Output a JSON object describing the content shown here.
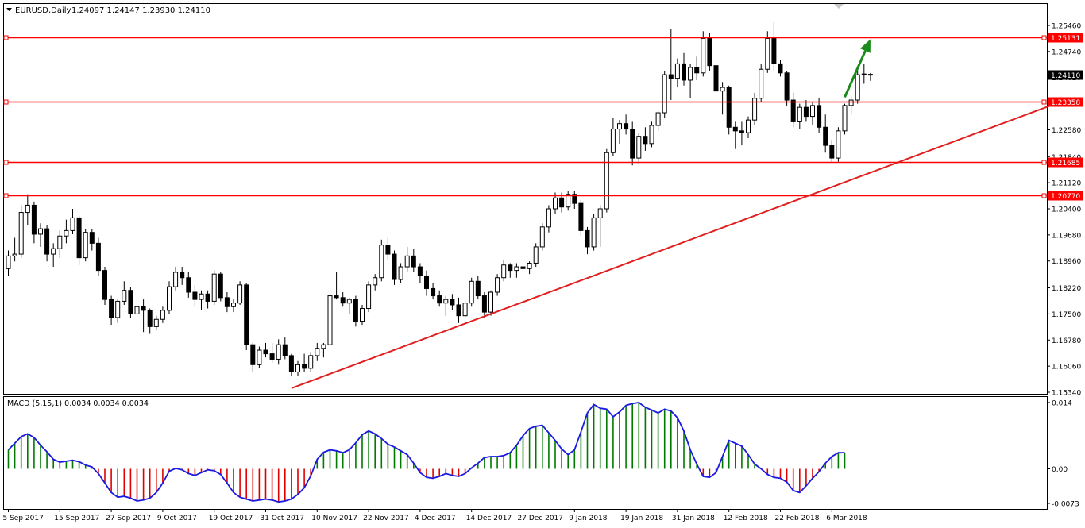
{
  "header": {
    "symbol_line": "EURUSD,Daily",
    "ohlc": "1.24097 1.24147 1.23930 1.24110"
  },
  "macd": {
    "label": "MACD (5,15,1) 0.0034 0.0034 0.0034",
    "ticks": [
      {
        "value": 0.014,
        "label": "0.014"
      },
      {
        "value": 0.0,
        "label": "0.00"
      },
      {
        "value": -0.0073,
        "label": "-0.0073"
      }
    ]
  },
  "colors": {
    "bull_body": "#ffffff",
    "bear_body": "#000000",
    "level_line": "#ff0000",
    "trendline": "#e02020",
    "arrow": "#1a8a1a",
    "hist_pos": "#007a00",
    "hist_neg": "#e00000",
    "macd_line": "#1a1ae0",
    "price_tag_bg": "#ff0000",
    "current_tag_bg": "#000000"
  },
  "chart_data": {
    "type": "candlestick",
    "symbol": "EURUSD",
    "timeframe": "Daily",
    "y_ticks": [
      1.2546,
      1.2474,
      1.2402,
      1.233,
      1.2258,
      1.2184,
      1.2112,
      1.204,
      1.1968,
      1.1896,
      1.1822,
      1.175,
      1.1678,
      1.1606,
      1.1534
    ],
    "y_tick_labels": [
      "1.25460",
      "1.24740",
      "1.24020",
      "1.23300",
      "1.22580",
      "1.21840",
      "1.21120",
      "1.20400",
      "1.19680",
      "1.18960",
      "1.18220",
      "1.17500",
      "1.16780",
      "1.16060",
      "1.15340"
    ],
    "x_labels": [
      "5 Sep 2017",
      "15 Sep 2017",
      "27 Sep 2017",
      "9 Oct 2017",
      "19 Oct 2017",
      "31 Oct 2017",
      "10 Nov 2017",
      "22 Nov 2017",
      "4 Dec 2017",
      "14 Dec 2017",
      "27 Dec 2017",
      "9 Jan 2018",
      "19 Jan 2018",
      "31 Jan 2018",
      "12 Feb 2018",
      "22 Feb 2018",
      "6 Mar 2018"
    ],
    "x_label_bars": [
      0,
      8,
      16,
      24,
      32,
      40,
      48,
      56,
      64,
      72,
      80,
      88,
      96,
      104,
      112,
      120,
      128
    ],
    "horizontal_levels": [
      {
        "value": 1.25131,
        "label": "1.25131"
      },
      {
        "value": 1.23358,
        "label": "1.23358"
      },
      {
        "value": 1.21685,
        "label": "1.21685"
      },
      {
        "value": 1.2077,
        "label": "1.20770"
      }
    ],
    "current_price": {
      "value": 1.2411,
      "label": "1.24110"
    },
    "trendline": {
      "from": {
        "bar": 44,
        "price": 1.1545
      },
      "to": {
        "bar": 162,
        "price": 1.2325
      }
    },
    "arrow": {
      "from": {
        "bar": 130,
        "price": 1.2348
      },
      "to": {
        "bar": 134,
        "price": 1.2508
      }
    },
    "candles": [
      [
        1.1875,
        1.1925,
        1.1855,
        1.191
      ],
      [
        1.191,
        1.196,
        1.1895,
        1.1915
      ],
      [
        1.1915,
        1.205,
        1.1905,
        1.203
      ],
      [
        1.203,
        1.208,
        1.1995,
        1.205
      ],
      [
        1.205,
        1.206,
        1.1945,
        1.197
      ],
      [
        1.197,
        1.2,
        1.1935,
        1.1985
      ],
      [
        1.1985,
        1.1995,
        1.1895,
        1.1915
      ],
      [
        1.1915,
        1.1945,
        1.188,
        1.193
      ],
      [
        1.193,
        1.198,
        1.1905,
        1.1965
      ],
      [
        1.1965,
        1.201,
        1.1945,
        1.198
      ],
      [
        1.198,
        1.204,
        1.197,
        1.2015
      ],
      [
        1.2015,
        1.202,
        1.1885,
        1.1905
      ],
      [
        1.1905,
        1.1985,
        1.1895,
        1.1975
      ],
      [
        1.1975,
        1.1985,
        1.1925,
        1.1945
      ],
      [
        1.1945,
        1.196,
        1.1855,
        1.187
      ],
      [
        1.187,
        1.188,
        1.1775,
        1.179
      ],
      [
        1.179,
        1.18,
        1.172,
        1.174
      ],
      [
        1.174,
        1.179,
        1.1725,
        1.1785
      ],
      [
        1.1785,
        1.184,
        1.1775,
        1.1815
      ],
      [
        1.1815,
        1.1825,
        1.174,
        1.175
      ],
      [
        1.175,
        1.178,
        1.1705,
        1.177
      ],
      [
        1.177,
        1.179,
        1.17,
        1.176
      ],
      [
        1.176,
        1.1765,
        1.1695,
        1.1715
      ],
      [
        1.1715,
        1.1745,
        1.1705,
        1.1735
      ],
      [
        1.1735,
        1.177,
        1.1725,
        1.176
      ],
      [
        1.176,
        1.184,
        1.175,
        1.1825
      ],
      [
        1.1825,
        1.188,
        1.1815,
        1.1865
      ],
      [
        1.1865,
        1.188,
        1.183,
        1.185
      ],
      [
        1.185,
        1.1865,
        1.1795,
        1.181
      ],
      [
        1.181,
        1.183,
        1.177,
        1.179
      ],
      [
        1.179,
        1.1815,
        1.176,
        1.1805
      ],
      [
        1.1805,
        1.1815,
        1.1765,
        1.1785
      ],
      [
        1.1785,
        1.187,
        1.1775,
        1.186
      ],
      [
        1.186,
        1.1865,
        1.1785,
        1.1795
      ],
      [
        1.1795,
        1.181,
        1.1755,
        1.177
      ],
      [
        1.177,
        1.179,
        1.1755,
        1.178
      ],
      [
        1.178,
        1.184,
        1.1775,
        1.183
      ],
      [
        1.183,
        1.1835,
        1.165,
        1.1665
      ],
      [
        1.1665,
        1.167,
        1.159,
        1.161
      ],
      [
        1.161,
        1.166,
        1.16,
        1.165
      ],
      [
        1.165,
        1.167,
        1.163,
        1.164
      ],
      [
        1.164,
        1.167,
        1.1615,
        1.1625
      ],
      [
        1.1625,
        1.168,
        1.161,
        1.1665
      ],
      [
        1.1665,
        1.1685,
        1.1625,
        1.1635
      ],
      [
        1.1635,
        1.164,
        1.158,
        1.159
      ],
      [
        1.159,
        1.162,
        1.158,
        1.161
      ],
      [
        1.161,
        1.164,
        1.159,
        1.16
      ],
      [
        1.16,
        1.1645,
        1.159,
        1.1635
      ],
      [
        1.1635,
        1.167,
        1.162,
        1.1655
      ],
      [
        1.1655,
        1.167,
        1.163,
        1.1665
      ],
      [
        1.1665,
        1.181,
        1.166,
        1.18
      ],
      [
        1.18,
        1.1865,
        1.179,
        1.1795
      ],
      [
        1.1795,
        1.181,
        1.177,
        1.178
      ],
      [
        1.178,
        1.1795,
        1.175,
        1.179
      ],
      [
        1.179,
        1.18,
        1.1715,
        1.173
      ],
      [
        1.173,
        1.1775,
        1.172,
        1.1765
      ],
      [
        1.1765,
        1.184,
        1.1755,
        1.183
      ],
      [
        1.183,
        1.186,
        1.1815,
        1.185
      ],
      [
        1.185,
        1.1955,
        1.184,
        1.194
      ],
      [
        1.194,
        1.196,
        1.19,
        1.1915
      ],
      [
        1.1915,
        1.1925,
        1.183,
        1.1845
      ],
      [
        1.1845,
        1.189,
        1.1835,
        1.188
      ],
      [
        1.188,
        1.1935,
        1.1865,
        1.191
      ],
      [
        1.191,
        1.193,
        1.1865,
        1.188
      ],
      [
        1.188,
        1.189,
        1.1835,
        1.1855
      ],
      [
        1.1855,
        1.187,
        1.18,
        1.182
      ],
      [
        1.182,
        1.1835,
        1.179,
        1.18
      ],
      [
        1.18,
        1.1815,
        1.177,
        1.178
      ],
      [
        1.178,
        1.18,
        1.1745,
        1.179
      ],
      [
        1.179,
        1.1805,
        1.176,
        1.1775
      ],
      [
        1.1775,
        1.1795,
        1.1725,
        1.1745
      ],
      [
        1.1745,
        1.1785,
        1.174,
        1.178
      ],
      [
        1.178,
        1.185,
        1.177,
        1.184
      ],
      [
        1.184,
        1.1855,
        1.179,
        1.18
      ],
      [
        1.18,
        1.181,
        1.174,
        1.1755
      ],
      [
        1.1755,
        1.1815,
        1.1745,
        1.181
      ],
      [
        1.181,
        1.186,
        1.18,
        1.185
      ],
      [
        1.185,
        1.19,
        1.184,
        1.1885
      ],
      [
        1.1885,
        1.189,
        1.185,
        1.187
      ],
      [
        1.187,
        1.189,
        1.185,
        1.188
      ],
      [
        1.188,
        1.1895,
        1.186,
        1.1875
      ],
      [
        1.1875,
        1.1895,
        1.186,
        1.189
      ],
      [
        1.189,
        1.1945,
        1.188,
        1.1935
      ],
      [
        1.1935,
        1.2,
        1.1925,
        1.199
      ],
      [
        1.199,
        1.205,
        1.1975,
        1.204
      ],
      [
        1.204,
        1.2085,
        1.2025,
        1.207
      ],
      [
        1.207,
        1.2085,
        1.203,
        1.2045
      ],
      [
        1.2045,
        1.209,
        1.2035,
        1.208
      ],
      [
        1.208,
        1.209,
        1.204,
        1.2055
      ],
      [
        1.2055,
        1.2065,
        1.1965,
        1.198
      ],
      [
        1.198,
        1.199,
        1.1915,
        1.1935
      ],
      [
        1.1935,
        1.2025,
        1.1925,
        1.2015
      ],
      [
        1.2015,
        1.205,
        1.1935,
        1.204
      ],
      [
        1.204,
        1.2205,
        1.203,
        1.2195
      ],
      [
        1.2195,
        1.229,
        1.2185,
        1.226
      ],
      [
        1.226,
        1.2285,
        1.222,
        1.2275
      ],
      [
        1.2275,
        1.23,
        1.2245,
        1.226
      ],
      [
        1.226,
        1.228,
        1.216,
        1.218
      ],
      [
        1.218,
        1.225,
        1.2165,
        1.224
      ],
      [
        1.224,
        1.2265,
        1.22,
        1.222
      ],
      [
        1.222,
        1.228,
        1.221,
        1.227
      ],
      [
        1.227,
        1.231,
        1.2255,
        1.2305
      ],
      [
        1.2305,
        1.242,
        1.229,
        1.241
      ],
      [
        1.241,
        1.2535,
        1.234,
        1.24
      ],
      [
        1.24,
        1.2455,
        1.2375,
        1.244
      ],
      [
        1.244,
        1.247,
        1.238,
        1.2395
      ],
      [
        1.2395,
        1.244,
        1.2345,
        1.243
      ],
      [
        1.243,
        1.246,
        1.2395,
        1.2415
      ],
      [
        1.2415,
        1.253,
        1.2405,
        1.251
      ],
      [
        1.251,
        1.2525,
        1.242,
        1.2435
      ],
      [
        1.2435,
        1.247,
        1.235,
        1.2365
      ],
      [
        1.2365,
        1.239,
        1.23,
        1.2375
      ],
      [
        1.2375,
        1.238,
        1.2245,
        1.2265
      ],
      [
        1.2265,
        1.228,
        1.2205,
        1.2255
      ],
      [
        1.2255,
        1.228,
        1.2215,
        1.225
      ],
      [
        1.225,
        1.2295,
        1.2235,
        1.2285
      ],
      [
        1.2285,
        1.236,
        1.227,
        1.2345
      ],
      [
        1.2345,
        1.244,
        1.2335,
        1.2425
      ],
      [
        1.2425,
        1.253,
        1.2415,
        1.251
      ],
      [
        1.251,
        1.2555,
        1.242,
        1.244
      ],
      [
        1.244,
        1.245,
        1.2405,
        1.2415
      ],
      [
        1.2415,
        1.242,
        1.2325,
        1.234
      ],
      [
        1.234,
        1.236,
        1.2265,
        1.228
      ],
      [
        1.228,
        1.233,
        1.226,
        1.232
      ],
      [
        1.232,
        1.234,
        1.228,
        1.2295
      ],
      [
        1.2295,
        1.2335,
        1.227,
        1.2325
      ],
      [
        1.2325,
        1.2345,
        1.225,
        1.2265
      ],
      [
        1.2265,
        1.23,
        1.2195,
        1.2215
      ],
      [
        1.2215,
        1.223,
        1.217,
        1.218
      ],
      [
        1.218,
        1.2265,
        1.217,
        1.2255
      ],
      [
        1.2255,
        1.233,
        1.2245,
        1.2325
      ],
      [
        1.2325,
        1.235,
        1.23,
        1.234
      ],
      [
        1.234,
        1.2425,
        1.233,
        1.241
      ],
      [
        1.241,
        1.244,
        1.2385,
        1.2412
      ],
      [
        1.241,
        1.2415,
        1.2393,
        1.2411
      ]
    ],
    "macd_hist": [
      0.004,
      0.0054,
      0.0068,
      0.0074,
      0.0066,
      0.005,
      0.0036,
      0.002,
      0.0014,
      0.0016,
      0.0018,
      0.0015,
      0.0008,
      0.0004,
      -0.001,
      -0.003,
      -0.005,
      -0.006,
      -0.0058,
      -0.0062,
      -0.0068,
      -0.0066,
      -0.0062,
      -0.005,
      -0.003,
      -0.0005,
      0.0001,
      -0.0002,
      -0.001,
      -0.0014,
      -0.0008,
      -0.0002,
      -0.0004,
      -0.0012,
      -0.003,
      -0.005,
      -0.006,
      -0.0064,
      -0.0068,
      -0.0066,
      -0.0064,
      -0.0066,
      -0.007,
      -0.0068,
      -0.0064,
      -0.0054,
      -0.004,
      -0.0015,
      0.002,
      0.0035,
      0.004,
      0.0038,
      0.0034,
      0.004,
      0.0055,
      0.0072,
      0.008,
      0.0074,
      0.0064,
      0.0052,
      0.0046,
      0.0038,
      0.003,
      0.0012,
      -0.0008,
      -0.0018,
      -0.002,
      -0.0016,
      -0.001,
      -0.0014,
      -0.0016,
      -0.001,
      0.0002,
      0.0012,
      0.0024,
      0.0026,
      0.0026,
      0.0028,
      0.0034,
      0.005,
      0.007,
      0.0085,
      0.009,
      0.0092,
      0.0076,
      0.006,
      0.0042,
      0.003,
      0.004,
      0.0078,
      0.0118,
      0.0136,
      0.0128,
      0.0126,
      0.011,
      0.012,
      0.0134,
      0.0138,
      0.014,
      0.013,
      0.0124,
      0.0118,
      0.0126,
      0.0122,
      0.0108,
      0.008,
      0.004,
      0.001,
      -0.0016,
      -0.0018,
      -0.0008,
      0.0026,
      0.006,
      0.0054,
      0.0048,
      0.003,
      0.001,
      0.0,
      -0.0012,
      -0.0018,
      -0.002,
      -0.0028,
      -0.0046,
      -0.005,
      -0.0036,
      -0.002,
      -0.0006,
      0.0012,
      0.0026,
      0.0034,
      0.0034
    ]
  }
}
